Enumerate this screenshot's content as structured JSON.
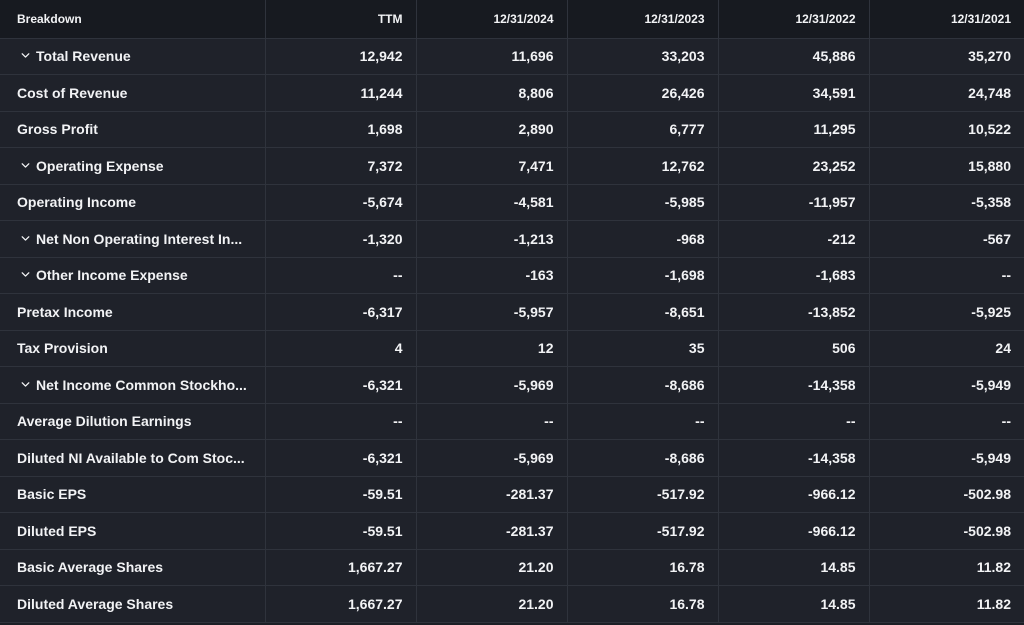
{
  "table": {
    "headers": [
      "Breakdown",
      "TTM",
      "12/31/2024",
      "12/31/2023",
      "12/31/2022",
      "12/31/2021"
    ],
    "rows": [
      {
        "label": "Total Revenue",
        "expandable": true,
        "values": [
          "12,942",
          "11,696",
          "33,203",
          "45,886",
          "35,270"
        ]
      },
      {
        "label": "Cost of Revenue",
        "expandable": false,
        "values": [
          "11,244",
          "8,806",
          "26,426",
          "34,591",
          "24,748"
        ]
      },
      {
        "label": "Gross Profit",
        "expandable": false,
        "values": [
          "1,698",
          "2,890",
          "6,777",
          "11,295",
          "10,522"
        ]
      },
      {
        "label": "Operating Expense",
        "expandable": true,
        "values": [
          "7,372",
          "7,471",
          "12,762",
          "23,252",
          "15,880"
        ]
      },
      {
        "label": "Operating Income",
        "expandable": false,
        "values": [
          "-5,674",
          "-4,581",
          "-5,985",
          "-11,957",
          "-5,358"
        ]
      },
      {
        "label": "Net Non Operating Interest In...",
        "expandable": true,
        "values": [
          "-1,320",
          "-1,213",
          "-968",
          "-212",
          "-567"
        ]
      },
      {
        "label": "Other Income Expense",
        "expandable": true,
        "values": [
          "--",
          "-163",
          "-1,698",
          "-1,683",
          "--"
        ]
      },
      {
        "label": "Pretax Income",
        "expandable": false,
        "values": [
          "-6,317",
          "-5,957",
          "-8,651",
          "-13,852",
          "-5,925"
        ]
      },
      {
        "label": "Tax Provision",
        "expandable": false,
        "values": [
          "4",
          "12",
          "35",
          "506",
          "24"
        ]
      },
      {
        "label": "Net Income Common Stockho...",
        "expandable": true,
        "values": [
          "-6,321",
          "-5,969",
          "-8,686",
          "-14,358",
          "-5,949"
        ]
      },
      {
        "label": "Average Dilution Earnings",
        "expandable": false,
        "values": [
          "--",
          "--",
          "--",
          "--",
          "--"
        ]
      },
      {
        "label": "Diluted NI Available to Com Stoc...",
        "expandable": false,
        "values": [
          "-6,321",
          "-5,969",
          "-8,686",
          "-14,358",
          "-5,949"
        ]
      },
      {
        "label": "Basic EPS",
        "expandable": false,
        "values": [
          "-59.51",
          "-281.37",
          "-517.92",
          "-966.12",
          "-502.98"
        ]
      },
      {
        "label": "Diluted EPS",
        "expandable": false,
        "values": [
          "-59.51",
          "-281.37",
          "-517.92",
          "-966.12",
          "-502.98"
        ]
      },
      {
        "label": "Basic Average Shares",
        "expandable": false,
        "values": [
          "1,667.27",
          "21.20",
          "16.78",
          "14.85",
          "11.82"
        ]
      },
      {
        "label": "Diluted Average Shares",
        "expandable": false,
        "values": [
          "1,667.27",
          "21.20",
          "16.78",
          "14.85",
          "11.82"
        ]
      }
    ]
  },
  "icons": {
    "expand": "chevron-down-icon"
  },
  "colors": {
    "background": "#1c1f26",
    "header_background": "#171a20",
    "cell_background": "#1f222a",
    "grid_line": "#2f333c",
    "text": "#f2f3f5"
  }
}
